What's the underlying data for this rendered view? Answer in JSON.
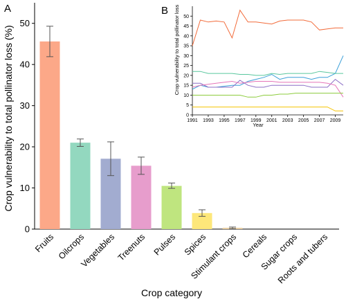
{
  "chart_data": [
    {
      "panel": "A",
      "type": "bar",
      "xlabel": "Crop category",
      "ylabel": "Crop vulnerability to total pollinator loss (%)",
      "ylim": [
        0,
        55
      ],
      "yticks": [
        "0",
        "10",
        "20",
        "30",
        "40",
        "50"
      ],
      "grid": false,
      "categories": [
        "Fruits",
        "Oilcrops",
        "Vegetables",
        "Treenuts",
        "Pulses",
        "Spices",
        "Stimulant crops",
        "Cereals",
        "Sugar crops",
        "Roots and tubers"
      ],
      "values": [
        45.6,
        21.0,
        17.1,
        15.4,
        10.5,
        3.9,
        0.3,
        0,
        0,
        0
      ],
      "error_low": [
        41.9,
        20.1,
        13.0,
        13.3,
        9.9,
        3.1,
        0.1,
        0,
        0,
        0
      ],
      "error_high": [
        49.3,
        21.9,
        21.2,
        17.5,
        11.2,
        4.7,
        0.5,
        0,
        0,
        0
      ],
      "colors": [
        "#fca888",
        "#93d8bf",
        "#a2acd0",
        "#e79dcc",
        "#bfe57f",
        "#fde77a",
        "#e8cc9c",
        "#cccccc",
        "#cccccc",
        "#cccccc"
      ]
    },
    {
      "panel": "B",
      "type": "line",
      "xlabel": "Year",
      "ylabel": "Crop vulnerability to total pollinator loss",
      "ylim": [
        0,
        55
      ],
      "yticks": [
        "0",
        "5",
        "10",
        "15",
        "20",
        "25",
        "30",
        "35",
        "40",
        "45",
        "50"
      ],
      "xticks": [
        "1991",
        "1993",
        "1995",
        "1997",
        "1999",
        "2001",
        "2003",
        "2005",
        "2007",
        "2009"
      ],
      "x": [
        1991,
        1992,
        1993,
        1994,
        1995,
        1996,
        1997,
        1998,
        1999,
        2000,
        2001,
        2002,
        2003,
        2004,
        2005,
        2006,
        2007,
        2008,
        2009,
        2010
      ],
      "grid": false,
      "series": [
        {
          "color": "#f26b3a",
          "values": [
            35,
            48,
            47,
            47.5,
            47,
            39,
            53,
            47,
            47,
            46.5,
            46,
            47.5,
            48,
            48,
            48,
            47,
            43,
            43.5,
            44,
            44
          ]
        },
        {
          "color": "#3a9fd8",
          "values": [
            13,
            15,
            14,
            14,
            14.5,
            15,
            15,
            17,
            18,
            19,
            20.5,
            18,
            19,
            19,
            19,
            18,
            19,
            19,
            21,
            30
          ]
        },
        {
          "color": "#58c69d",
          "values": [
            22,
            22,
            21,
            21,
            21,
            21,
            20.5,
            20.5,
            20,
            20,
            21,
            20.5,
            21,
            21,
            21,
            21,
            22,
            21.5,
            21,
            21
          ]
        },
        {
          "color": "#8c6fc6",
          "values": [
            16,
            16,
            14,
            14,
            14,
            14,
            17.5,
            15,
            14,
            14,
            15,
            15,
            15,
            15,
            15,
            14,
            14,
            14,
            18,
            15
          ]
        },
        {
          "color": "#e574b8",
          "values": [
            14,
            15,
            15.5,
            16,
            16.5,
            17,
            16,
            16.5,
            17,
            17,
            17,
            16.5,
            16.5,
            16.5,
            16.5,
            16.5,
            16.5,
            16,
            15,
            9
          ]
        },
        {
          "color": "#8ccc3c",
          "values": [
            10,
            10,
            10,
            10,
            10,
            10,
            10,
            9,
            9,
            10,
            10,
            10.5,
            10.5,
            11,
            11,
            11,
            11,
            11,
            11,
            11
          ]
        },
        {
          "color": "#f5c400",
          "values": [
            4,
            4,
            4,
            4,
            4,
            4,
            4,
            4,
            4,
            4,
            4,
            4,
            4,
            4,
            4,
            4,
            4,
            4,
            2,
            2
          ]
        }
      ]
    }
  ]
}
